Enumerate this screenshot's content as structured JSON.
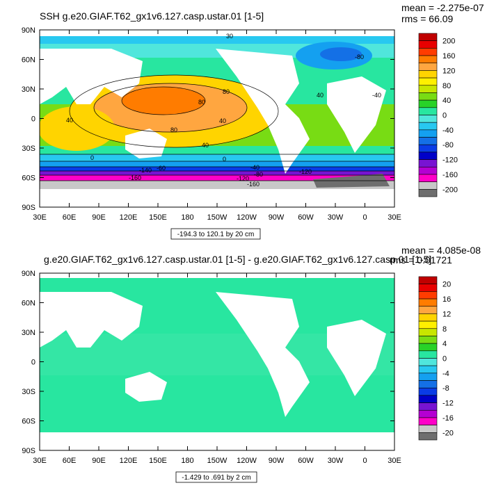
{
  "chart_data": [
    {
      "type": "heatmap",
      "kind": "global map, filled contours",
      "title": "SSH g.e20.GIAF.T62_gx1v6.127.casp.ustar.01 [1-5]",
      "stats": {
        "mean": "mean = -2.275e-07",
        "rms": "rms = 66.09"
      },
      "contour_info": "-194.3 to 120.1 by 20 cm",
      "x_ticks": [
        "30E",
        "60E",
        "90E",
        "120E",
        "150E",
        "180",
        "150W",
        "120W",
        "90W",
        "60W",
        "30W",
        "0",
        "30E"
      ],
      "y_ticks": [
        "90N",
        "60N",
        "30N",
        "0",
        "30S",
        "60S",
        "90S"
      ],
      "colorbar": {
        "labels": [
          "200",
          "160",
          "120",
          "80",
          "40",
          "0",
          "-40",
          "-80",
          "-120",
          "-160",
          "-200"
        ],
        "colors": [
          "#c00000",
          "#e80000",
          "#ff3c00",
          "#ff7c00",
          "#ffa640",
          "#ffd400",
          "#fff000",
          "#c8e600",
          "#78dc14",
          "#28d228",
          "#28e6a0",
          "#50e6dc",
          "#28c8f0",
          "#14a0f0",
          "#1470e6",
          "#0a3ce6",
          "#0000c8",
          "#7814d2",
          "#b400d2",
          "#ff00c8",
          "#c8c8c8",
          "#6e6e6e"
        ],
        "levels": [
          200,
          180,
          160,
          140,
          120,
          100,
          80,
          60,
          40,
          20,
          0,
          -20,
          -40,
          -60,
          -80,
          -100,
          -120,
          -140,
          -160,
          -180,
          -200,
          -220
        ]
      },
      "contour_labels": [
        "40",
        "0",
        "-80",
        "30",
        "80",
        "80",
        "40",
        "-40",
        "80",
        "40",
        "0",
        "-120",
        "-140",
        "-160",
        "40",
        "-40",
        "-60",
        "-80",
        "-120",
        "-160"
      ]
    },
    {
      "type": "heatmap",
      "kind": "global map, filled contours (difference)",
      "title": "g.e20.GIAF.T62_gx1v6.127.casp.ustar.01 [1-5] - g.e20.GIAF.T62_gx1v6.127.casp.01 [1-5]",
      "stats": {
        "mean": "mean = 4.085e-08",
        "rms": "rms = 0.01721"
      },
      "contour_info": "-1.429 to .691 by 2 cm",
      "x_ticks": [
        "30E",
        "60E",
        "90E",
        "120E",
        "150E",
        "180",
        "150W",
        "120W",
        "90W",
        "60W",
        "30W",
        "0",
        "30E"
      ],
      "y_ticks": [
        "90N",
        "60N",
        "30N",
        "0",
        "30S",
        "60S",
        "90S"
      ],
      "colorbar": {
        "labels": [
          "20",
          "16",
          "12",
          "8",
          "4",
          "0",
          "-4",
          "-8",
          "-12",
          "-16",
          "-20"
        ],
        "colors": [
          "#c00000",
          "#e80000",
          "#ff3c00",
          "#ff7c00",
          "#ffa640",
          "#ffd400",
          "#fff000",
          "#c8e600",
          "#78dc14",
          "#28d228",
          "#28e6a0",
          "#50e6dc",
          "#28c8f0",
          "#14a0f0",
          "#1470e6",
          "#0a3ce6",
          "#0000c8",
          "#7814d2",
          "#b400d2",
          "#ff00c8",
          "#c8c8c8",
          "#6e6e6e"
        ],
        "levels": [
          20,
          18,
          16,
          14,
          12,
          10,
          8,
          6,
          4,
          2,
          0,
          -2,
          -4,
          -6,
          -8,
          -10,
          -12,
          -14,
          -16,
          -18,
          -20,
          -22
        ]
      },
      "dominant_level": 0
    }
  ],
  "colors": {
    "ocean_zero_top": "#28e6a0",
    "ocean_zero_bottom": "#3ce6a8",
    "land": "#ffffff",
    "frame": "#000000"
  }
}
